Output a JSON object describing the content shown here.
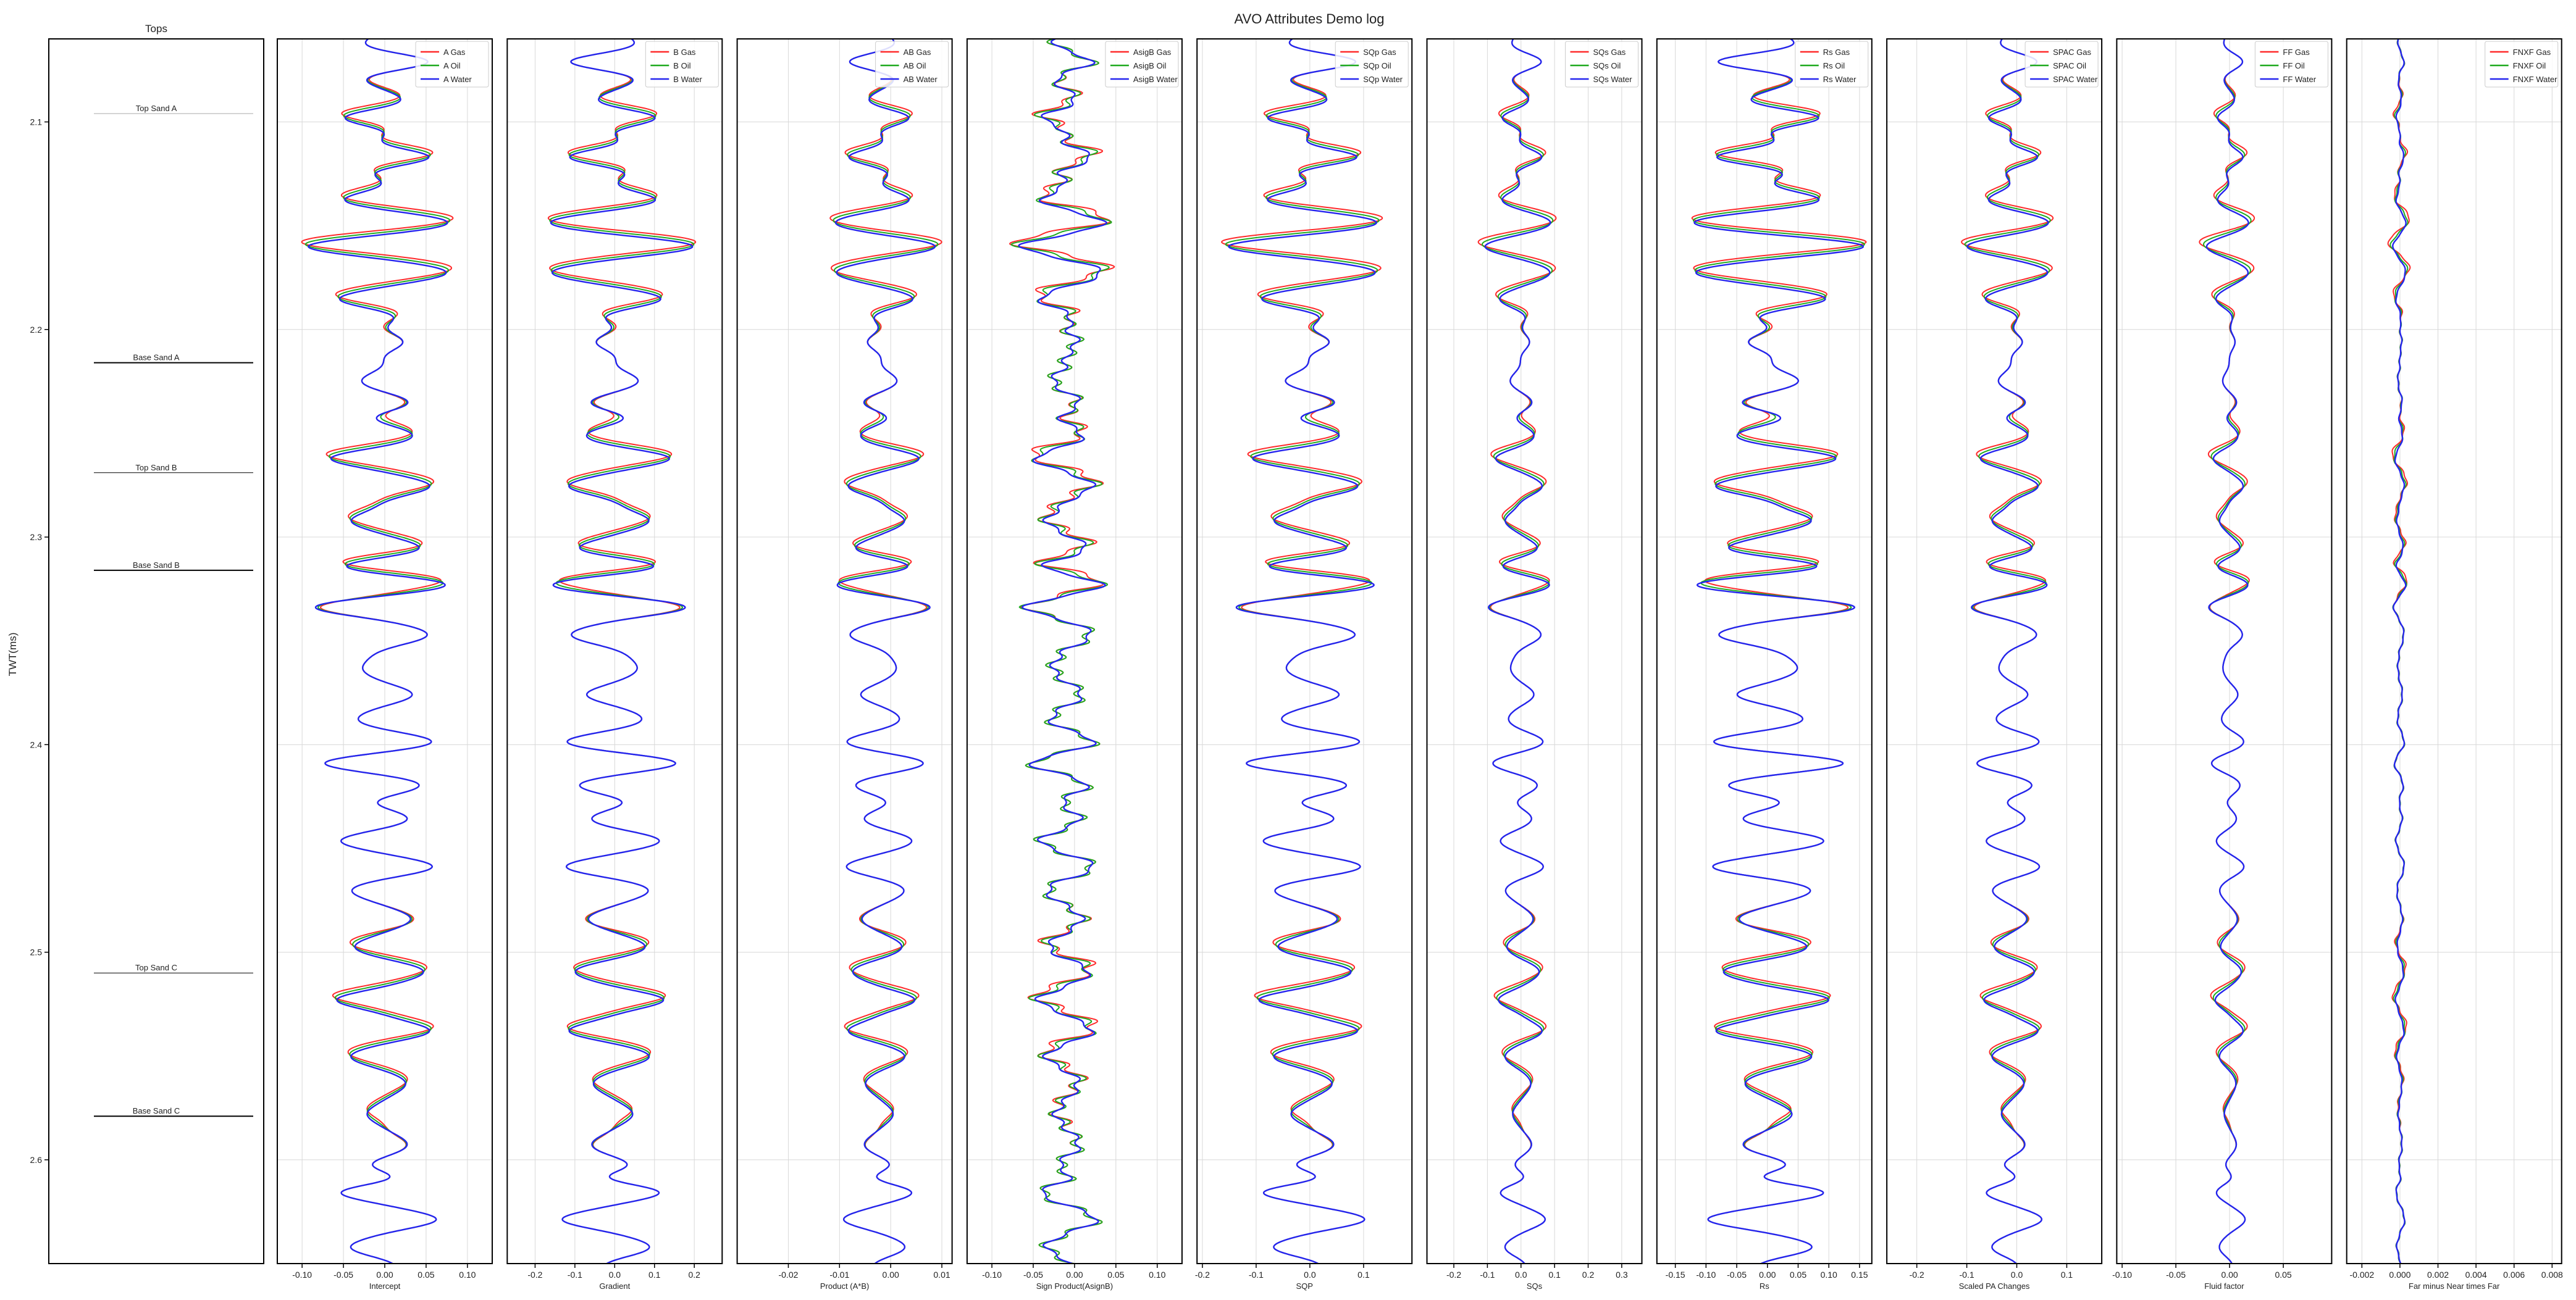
{
  "figure": {
    "suptitle": "AVO Attributes Demo log",
    "ylabel": "TWT(ms)"
  },
  "colors": {
    "gas": "#ff2a2a",
    "oil": "#1faa1f",
    "water": "#2424ee",
    "grid": "#d8d8d8",
    "axis": "#000000"
  },
  "chart_data": {
    "type": "line",
    "orientation": "vertical-log",
    "y_axis": {
      "label": "TWT(ms)",
      "range": [
        2.06,
        2.65
      ],
      "inverted": true,
      "ticks": [
        "2.1",
        "2.2",
        "2.3",
        "2.4",
        "2.5",
        "2.6"
      ]
    },
    "tops_track": {
      "title": "Tops",
      "tops": [
        {
          "name": "Top Sand A",
          "twt": 2.096
        },
        {
          "name": "Base Sand A",
          "twt": 2.216
        },
        {
          "name": "Top Sand B",
          "twt": 2.269
        },
        {
          "name": "Base Sand B",
          "twt": 2.316
        },
        {
          "name": "Top Sand C",
          "twt": 2.51
        },
        {
          "name": "Base Sand C",
          "twt": 2.579
        }
      ]
    },
    "tracks": [
      {
        "key": "A",
        "xlabel": "Intercept",
        "xlim": [
          -0.13,
          0.13
        ],
        "ticks": [
          "-0.10",
          "-0.05",
          "0.00",
          "0.05",
          "0.10"
        ],
        "tickvals": [
          -0.1,
          -0.05,
          0,
          0.05,
          0.1
        ],
        "legend": [
          "A Gas",
          "A Oil",
          "A Water"
        ],
        "amp": 0.052,
        "base": 0,
        "noise": 0.0,
        "zone": 1.0,
        "flip": 1
      },
      {
        "key": "B",
        "xlabel": "Gradient",
        "xlim": [
          -0.27,
          0.27
        ],
        "ticks": [
          "-0.2",
          "-0.1",
          "0.0",
          "0.1",
          "0.2"
        ],
        "tickvals": [
          -0.2,
          -0.1,
          0,
          0.1,
          0.2
        ],
        "legend": [
          "B Gas",
          "B Oil",
          "B Water"
        ],
        "amp": 0.11,
        "base": 0,
        "noise": 0.0,
        "zone": 0.45,
        "flip": -1
      },
      {
        "key": "AB",
        "xlabel": "Product (A*B)",
        "xlim": [
          -0.03,
          0.012
        ],
        "ticks": [
          "-0.02",
          "-0.01",
          "0.00",
          "0.01"
        ],
        "tickvals": [
          -0.02,
          -0.01,
          0,
          0.01
        ],
        "legend": [
          "AB Gas",
          "AB Oil",
          "AB Water"
        ],
        "amp": 0.006,
        "base": -0.002,
        "noise": 0.0,
        "zone": 1.4,
        "flip": -1
      },
      {
        "key": "AsigB",
        "xlabel": "Sign Product(AsignB)",
        "xlim": [
          -0.13,
          0.13
        ],
        "ticks": [
          "-0.10",
          "-0.05",
          "0.00",
          "0.05",
          "0.10"
        ],
        "tickvals": [
          -0.1,
          -0.05,
          0,
          0.05,
          0.1
        ],
        "legend": [
          "AsigB Gas",
          "AsigB Oil",
          "AsigB Water"
        ],
        "amp": 0.03,
        "base": -0.01,
        "noise": 0.01,
        "zone": 1.6,
        "flip": 1
      },
      {
        "key": "SQp",
        "xlabel": "SQP",
        "xlim": [
          -0.21,
          0.19
        ],
        "ticks": [
          "-0.2",
          "-0.1",
          "0.0",
          "0.1"
        ],
        "tickvals": [
          -0.2,
          -0.1,
          0,
          0.1
        ],
        "legend": [
          "SQp Gas",
          "SQp Oil",
          "SQp Water"
        ],
        "amp": 0.085,
        "base": 0,
        "noise": 0.0,
        "zone": 1.0,
        "flip": 1
      },
      {
        "key": "SQs",
        "xlabel": "SQs",
        "xlim": [
          -0.28,
          0.36
        ],
        "ticks": [
          "-0.2",
          "-0.1",
          "0.0",
          "0.1",
          "0.2",
          "0.3"
        ],
        "tickvals": [
          -0.2,
          -0.1,
          0,
          0.1,
          0.2,
          0.3
        ],
        "legend": [
          "SQs Gas",
          "SQs Oil",
          "SQs Water"
        ],
        "amp": 0.06,
        "base": 0,
        "noise": 0.0,
        "zone": 2.2,
        "flip": 1
      },
      {
        "key": "Rs",
        "xlabel": "Rs",
        "xlim": [
          -0.18,
          0.17
        ],
        "ticks": [
          "-0.15",
          "-0.10",
          "-0.05",
          "0.00",
          "0.05",
          "0.10",
          "0.15"
        ],
        "tickvals": [
          -0.15,
          -0.1,
          -0.05,
          0,
          0.05,
          0.1,
          0.15
        ],
        "legend": [
          "Rs Gas",
          "Rs Oil",
          "Rs Water"
        ],
        "amp": 0.085,
        "base": 0.005,
        "noise": 0.0,
        "zone": 0.35,
        "flip": -1
      },
      {
        "key": "SPAC",
        "xlabel": "Scaled PA Changes",
        "xlim": [
          -0.26,
          0.17
        ],
        "ticks": [
          "-0.2",
          "-0.1",
          "0.0",
          "0.1"
        ],
        "tickvals": [
          -0.2,
          -0.1,
          0,
          0.1
        ],
        "legend": [
          "SPAC Gas",
          "SPAC Oil",
          "SPAC Water"
        ],
        "amp": 0.05,
        "base": -0.01,
        "noise": 0.0,
        "zone": 1.5,
        "flip": 1
      },
      {
        "key": "FF",
        "xlabel": "Fluid factor",
        "xlim": [
          -0.105,
          0.095
        ],
        "ticks": [
          "-0.10",
          "-0.05",
          "0.00",
          "0.05"
        ],
        "tickvals": [
          -0.1,
          -0.05,
          0,
          0.05
        ],
        "legend": [
          "FF Gas",
          "FF Oil",
          "FF Water"
        ],
        "amp": 0.012,
        "base": 0,
        "noise": 0.0,
        "zone": 3.6,
        "flip": 1
      },
      {
        "key": "FNXF",
        "xlabel": "Far minus Near times Far",
        "xlim": [
          -0.0028,
          0.0085
        ],
        "ticks": [
          "-0.002",
          "0.000",
          "0.002",
          "0.004",
          "0.006",
          "0.008"
        ],
        "tickvals": [
          -0.002,
          0,
          0.002,
          0.004,
          0.006,
          0.008
        ],
        "legend": [
          "FNXF Gas",
          "FNXF Oil",
          "FNXF Water"
        ],
        "amp": 0.0002,
        "base": 0,
        "noise": 5e-05,
        "zone": 8.0,
        "flip": 1
      }
    ],
    "wavelet_events": [
      {
        "twt": 2.071,
        "w": 1.0
      },
      {
        "twt": 2.098,
        "w": -0.9
      },
      {
        "twt": 2.117,
        "w": 1.0
      },
      {
        "twt": 2.137,
        "w": -0.6
      },
      {
        "twt": 2.148,
        "w": 0.8
      },
      {
        "twt": 2.16,
        "w": -1.3
      },
      {
        "twt": 2.173,
        "w": 0.9
      },
      {
        "twt": 2.186,
        "w": -0.8
      },
      {
        "twt": 2.206,
        "w": 0.4
      },
      {
        "twt": 2.224,
        "w": -0.35
      },
      {
        "twt": 2.236,
        "w": 0.5
      },
      {
        "twt": 2.249,
        "w": 0.4
      },
      {
        "twt": 2.262,
        "w": -1.0
      },
      {
        "twt": 2.276,
        "w": 0.8
      },
      {
        "twt": 2.292,
        "w": -0.6
      },
      {
        "twt": 2.306,
        "w": 0.6
      },
      {
        "twt": 2.315,
        "w": -0.3
      },
      {
        "twt": 2.322,
        "w": 0.9
      },
      {
        "twt": 2.334,
        "w": -1.2
      },
      {
        "twt": 2.348,
        "w": 0.7
      },
      {
        "twt": 2.363,
        "w": -0.3
      },
      {
        "twt": 2.376,
        "w": 0.5
      },
      {
        "twt": 2.388,
        "w": -0.2
      },
      {
        "twt": 2.398,
        "w": 0.6
      },
      {
        "twt": 2.409,
        "w": -1.0
      },
      {
        "twt": 2.421,
        "w": 0.5
      },
      {
        "twt": 2.434,
        "w": 0.35
      },
      {
        "twt": 2.446,
        "w": -0.7
      },
      {
        "twt": 2.459,
        "w": 0.8
      },
      {
        "twt": 2.471,
        "w": -0.4
      },
      {
        "twt": 2.484,
        "w": 0.4
      },
      {
        "twt": 2.497,
        "w": -0.4
      },
      {
        "twt": 2.509,
        "w": 0.6
      },
      {
        "twt": 2.523,
        "w": -0.9
      },
      {
        "twt": 2.538,
        "w": 0.8
      },
      {
        "twt": 2.551,
        "w": -0.5
      },
      {
        "twt": 2.564,
        "w": 0.3
      },
      {
        "twt": 2.578,
        "w": -0.3
      },
      {
        "twt": 2.592,
        "w": 0.3
      },
      {
        "twt": 2.604,
        "w": -0.5
      },
      {
        "twt": 2.615,
        "w": -1.0
      },
      {
        "twt": 2.629,
        "w": 0.9
      },
      {
        "twt": 2.643,
        "w": -0.6
      }
    ],
    "fluid_zones": [
      {
        "from": 2.09,
        "to": 2.19
      },
      {
        "from": 2.25,
        "to": 2.32
      },
      {
        "from": 2.5,
        "to": 2.58
      }
    ]
  }
}
